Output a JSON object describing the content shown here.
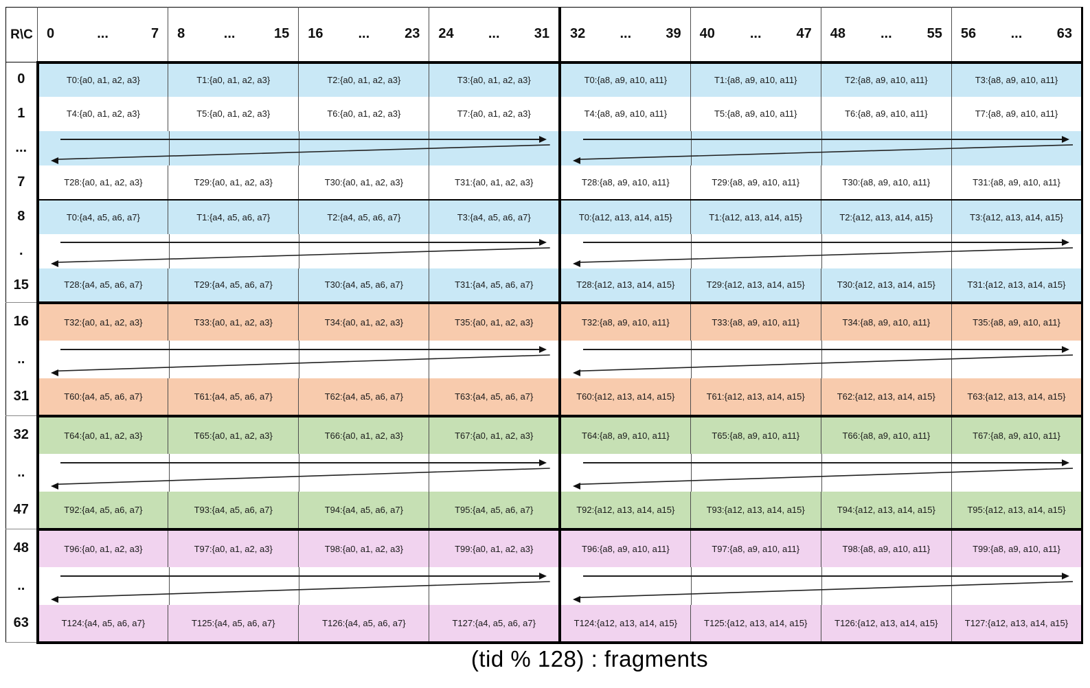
{
  "table": {
    "corner": "R\\C",
    "caption": "(tid % 128) : fragments",
    "band_colors": {
      "blue": "#C9E8F6",
      "orange": "#F8CBAD",
      "green": "#C6E0B4",
      "pink": "#F1D3EF"
    },
    "col_groups": [
      {
        "start": "0",
        "dots": "...",
        "end": "7"
      },
      {
        "start": "8",
        "dots": "...",
        "end": "15"
      },
      {
        "start": "16",
        "dots": "...",
        "end": "23"
      },
      {
        "start": "24",
        "dots": "...",
        "end": "31"
      },
      {
        "start": "32",
        "dots": "...",
        "end": "39"
      },
      {
        "start": "40",
        "dots": "...",
        "end": "47"
      },
      {
        "start": "48",
        "dots": "...",
        "end": "55"
      },
      {
        "start": "56",
        "dots": "...",
        "end": "63"
      }
    ],
    "bands": [
      {
        "color": "blue",
        "rows": [
          {
            "label": "0",
            "type": "data",
            "shaded": true,
            "cells": [
              "T0:{a0, a1, a2, a3}",
              "T1:{a0, a1, a2, a3}",
              "T2:{a0, a1, a2, a3}",
              "T3:{a0, a1, a2, a3}",
              "T0:{a8, a9, a10, a11}",
              "T1:{a8, a9, a10, a11}",
              "T2:{a8, a9, a10, a11}",
              "T3:{a8, a9, a10, a11}"
            ]
          },
          {
            "label": "1",
            "type": "data",
            "shaded": false,
            "cells": [
              "T4:{a0, a1, a2, a3}",
              "T5:{a0, a1, a2, a3}",
              "T6:{a0, a1, a2, a3}",
              "T7:{a0, a1, a2, a3}",
              "T4:{a8, a9, a10, a11}",
              "T5:{a8, a9, a10, a11}",
              "T6:{a8, a9, a10, a11}",
              "T7:{a8, a9, a10, a11}"
            ]
          },
          {
            "label": "...",
            "type": "gap",
            "shaded": true
          },
          {
            "label": "7",
            "type": "data",
            "shaded": false,
            "cells": [
              "T28:{a0, a1, a2, a3}",
              "T29:{a0, a1, a2, a3}",
              "T30:{a0, a1, a2, a3}",
              "T31:{a0, a1, a2, a3}",
              "T28:{a8, a9, a10, a11}",
              "T29:{a8, a9, a10, a11}",
              "T30:{a8, a9, a10, a11}",
              "T31:{a8, a9, a10, a11}"
            ]
          },
          {
            "label": "8",
            "type": "data",
            "shaded": true,
            "sep_above": true,
            "cells": [
              "T0:{a4, a5, a6, a7}",
              "T1:{a4, a5, a6, a7}",
              "T2:{a4, a5, a6, a7}",
              "T3:{a4, a5, a6, a7}",
              "T0:{a12, a13, a14, a15}",
              "T1:{a12, a13, a14, a15}",
              "T2:{a12, a13, a14, a15}",
              "T3:{a12, a13, a14, a15}"
            ]
          },
          {
            "label": ".",
            "type": "gap",
            "shaded": false
          },
          {
            "label": "15",
            "type": "data",
            "shaded": true,
            "cells": [
              "T28:{a4, a5, a6, a7}",
              "T29:{a4, a5, a6, a7}",
              "T30:{a4, a5, a6, a7}",
              "T31:{a4, a5, a6, a7}",
              "T28:{a12, a13, a14, a15}",
              "T29:{a12, a13, a14, a15}",
              "T30:{a12, a13, a14, a15}",
              "T31:{a12, a13, a14, a15}"
            ]
          }
        ]
      },
      {
        "color": "orange",
        "rows": [
          {
            "label": "16",
            "type": "data",
            "shaded": true,
            "cells": [
              "T32:{a0, a1, a2, a3}",
              "T33:{a0, a1, a2, a3}",
              "T34:{a0, a1, a2, a3}",
              "T35:{a0, a1, a2, a3}",
              "T32:{a8, a9, a10, a11}",
              "T33:{a8, a9, a10, a11}",
              "T34:{a8, a9, a10, a11}",
              "T35:{a8, a9, a10, a11}"
            ]
          },
          {
            "label": "..",
            "type": "gap",
            "shaded": false
          },
          {
            "label": "31",
            "type": "data",
            "shaded": true,
            "cells": [
              "T60:{a4, a5, a6, a7}",
              "T61:{a4, a5, a6, a7}",
              "T62:{a4, a5, a6, a7}",
              "T63:{a4, a5, a6, a7}",
              "T60:{a12, a13, a14, a15}",
              "T61:{a12, a13, a14, a15}",
              "T62:{a12, a13, a14, a15}",
              "T63:{a12, a13, a14, a15}"
            ]
          }
        ]
      },
      {
        "color": "green",
        "rows": [
          {
            "label": "32",
            "type": "data",
            "shaded": true,
            "cells": [
              "T64:{a0, a1, a2, a3}",
              "T65:{a0, a1, a2, a3}",
              "T66:{a0, a1, a2, a3}",
              "T67:{a0, a1, a2, a3}",
              "T64:{a8, a9, a10, a11}",
              "T65:{a8, a9, a10, a11}",
              "T66:{a8, a9, a10, a11}",
              "T67:{a8, a9, a10, a11}"
            ]
          },
          {
            "label": "..",
            "type": "gap",
            "shaded": false
          },
          {
            "label": "47",
            "type": "data",
            "shaded": true,
            "cells": [
              "T92:{a4, a5, a6, a7}",
              "T93:{a4, a5, a6, a7}",
              "T94:{a4, a5, a6, a7}",
              "T95:{a4, a5, a6, a7}",
              "T92:{a12, a13, a14, a15}",
              "T93:{a12, a13, a14, a15}",
              "T94:{a12, a13, a14, a15}",
              "T95:{a12, a13, a14, a15}"
            ]
          }
        ]
      },
      {
        "color": "pink",
        "rows": [
          {
            "label": "48",
            "type": "data",
            "shaded": true,
            "cells": [
              "T96:{a0, a1, a2, a3}",
              "T97:{a0, a1, a2, a3}",
              "T98:{a0, a1, a2, a3}",
              "T99:{a0, a1, a2, a3}",
              "T96:{a8, a9, a10, a11}",
              "T97:{a8, a9, a10, a11}",
              "T98:{a8, a9, a10, a11}",
              "T99:{a8, a9, a10, a11}"
            ]
          },
          {
            "label": "..",
            "type": "gap",
            "shaded": false
          },
          {
            "label": "63",
            "type": "data",
            "shaded": true,
            "cells": [
              "T124:{a4, a5, a6, a7}",
              "T125:{a4, a5, a6, a7}",
              "T126:{a4, a5, a6, a7}",
              "T127:{a4, a5, a6, a7}",
              "T124:{a12, a13, a14, a15}",
              "T125:{a12, a13, a14, a15}",
              "T126:{a12, a13, a14, a15}",
              "T127:{a12, a13, a14, a15}"
            ]
          }
        ]
      }
    ]
  }
}
